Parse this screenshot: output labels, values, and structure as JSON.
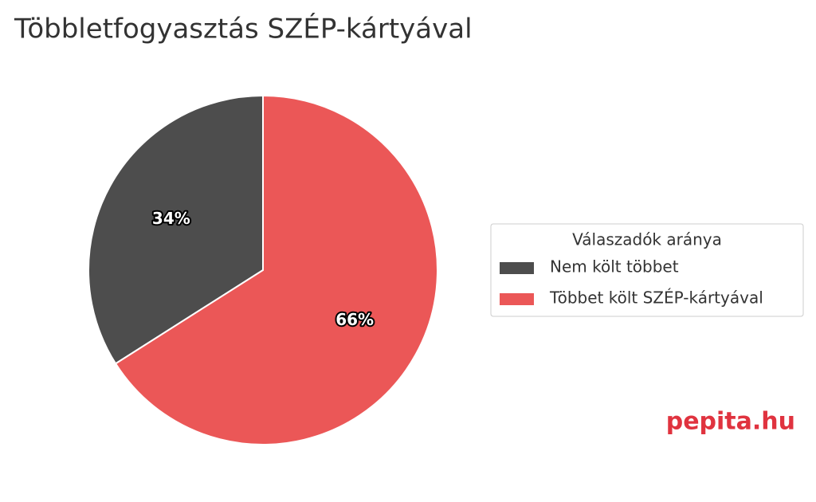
{
  "chart_data": {
    "type": "pie",
    "title": "Többletfogyasztás SZÉP-kártyával",
    "categories": [
      "Nem költ többet",
      "Többet költ SZÉP-kártyával"
    ],
    "values": [
      34,
      66
    ],
    "value_labels": [
      "34%",
      "66%"
    ],
    "colors": [
      "#4d4d4d",
      "#eb5757"
    ],
    "legend_title": "Válaszadók aránya",
    "legend": "right",
    "watermark": "pepita.hu"
  }
}
